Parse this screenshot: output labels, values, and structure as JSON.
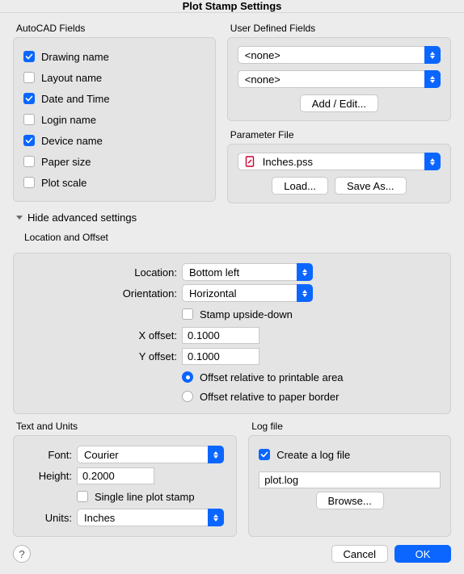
{
  "title": "Plot Stamp Settings",
  "colors": {
    "accent": "#0a66ff",
    "panel": "#e4e4e4",
    "bg": "#ececec",
    "border": "#c8c8c8"
  },
  "autocad_fields": {
    "section_label": "AutoCAD Fields",
    "items": [
      {
        "label": "Drawing name",
        "checked": true
      },
      {
        "label": "Layout name",
        "checked": false
      },
      {
        "label": "Date and Time",
        "checked": true
      },
      {
        "label": "Login name",
        "checked": false
      },
      {
        "label": "Device name",
        "checked": true
      },
      {
        "label": "Paper size",
        "checked": false
      },
      {
        "label": "Plot scale",
        "checked": false
      }
    ]
  },
  "user_defined": {
    "section_label": "User Defined Fields",
    "field1": "<none>",
    "field2": "<none>",
    "add_edit_label": "Add / Edit..."
  },
  "parameter_file": {
    "section_label": "Parameter File",
    "filename": "Inches.pss",
    "load_label": "Load...",
    "save_as_label": "Save As..."
  },
  "advanced_toggle_label": "Hide advanced settings",
  "location_offset": {
    "section_label": "Location and Offset",
    "location_label": "Location:",
    "location_value": "Bottom left",
    "orientation_label": "Orientation:",
    "orientation_value": "Horizontal",
    "upside_down_label": "Stamp upside-down",
    "upside_down_checked": false,
    "x_offset_label": "X offset:",
    "x_offset_value": "0.1000",
    "y_offset_label": "Y offset:",
    "y_offset_value": "0.1000",
    "offset_printable_label": "Offset relative to printable area",
    "offset_paper_label": "Offset relative to paper border",
    "offset_selected": "printable"
  },
  "text_units": {
    "section_label": "Text and Units",
    "font_label": "Font:",
    "font_value": "Courier",
    "height_label": "Height:",
    "height_value": "0.2000",
    "single_line_label": "Single line plot stamp",
    "single_line_checked": false,
    "units_label": "Units:",
    "units_value": "Inches"
  },
  "log_file": {
    "section_label": "Log file",
    "create_log_label": "Create a log file",
    "create_log_checked": true,
    "filename": "plot.log",
    "browse_label": "Browse..."
  },
  "footer": {
    "cancel_label": "Cancel",
    "ok_label": "OK"
  }
}
